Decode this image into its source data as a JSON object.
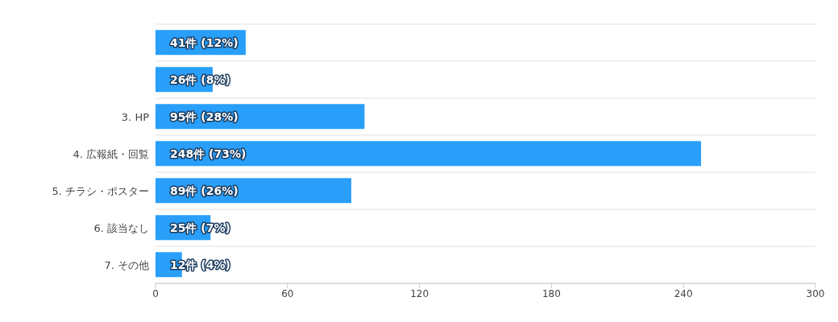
{
  "chart_data": {
    "type": "bar",
    "orientation": "horizontal",
    "categories": [
      null,
      null,
      "3. HP",
      "4. 広報紙・回覧",
      "5. チラシ・ポスター",
      "6. 該当なし",
      "7. その他"
    ],
    "values": [
      41,
      26,
      95,
      248,
      89,
      25,
      12
    ],
    "value_labels": [
      "41件 (12%)",
      "26件 (8%)",
      "95件 (28%)",
      "248件 (73%)",
      "89件 (26%)",
      "25件 (7%)",
      "12件 (4%)"
    ],
    "color": "#299ffa",
    "xlim": [
      0,
      300
    ],
    "xticks": [
      0,
      60,
      120,
      180,
      240,
      300
    ],
    "grid": "y"
  }
}
